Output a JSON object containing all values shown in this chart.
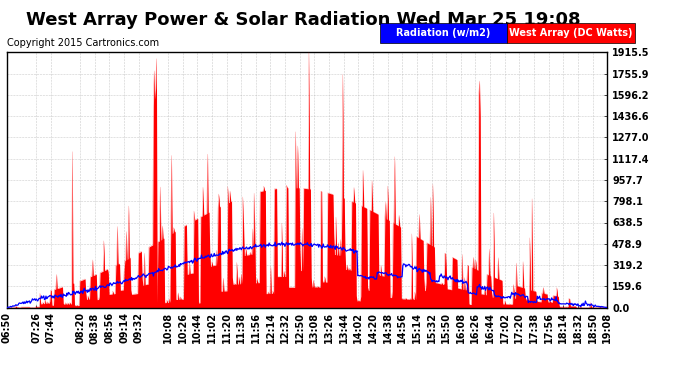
{
  "title": "West Array Power & Solar Radiation Wed Mar 25 19:08",
  "copyright": "Copyright 2015 Cartronics.com",
  "legend_radiation": "Radiation (w/m2)",
  "legend_west": "West Array (DC Watts)",
  "radiation_color": "#0000ff",
  "west_color": "#ff0000",
  "west_fill_color": "#ff0000",
  "background_color": "#ffffff",
  "grid_color": "#aaaaaa",
  "ymax": 1915.5,
  "ymin": 0.0,
  "ytick_vals": [
    0.0,
    159.6,
    319.2,
    478.9,
    638.5,
    798.1,
    957.7,
    1117.4,
    1277.0,
    1436.6,
    1596.2,
    1755.9,
    1915.5
  ],
  "ytick_labels": [
    "0.0",
    "159.6",
    "319.2",
    "478.9",
    "638.5",
    "798.1",
    "957.7",
    "1117.4",
    "1277.0",
    "1436.6",
    "1596.2",
    "1755.9",
    "1915.5"
  ],
  "xtick_labels": [
    "06:50",
    "07:26",
    "07:44",
    "08:20",
    "08:38",
    "08:56",
    "09:14",
    "09:32",
    "10:08",
    "10:26",
    "10:44",
    "11:02",
    "11:20",
    "11:38",
    "11:56",
    "12:14",
    "12:32",
    "12:50",
    "13:08",
    "13:26",
    "13:44",
    "14:02",
    "14:20",
    "14:38",
    "14:56",
    "15:14",
    "15:32",
    "15:50",
    "16:08",
    "16:26",
    "16:44",
    "17:02",
    "17:20",
    "17:38",
    "17:56",
    "18:14",
    "18:32",
    "18:50",
    "19:08"
  ],
  "title_fontsize": 13,
  "tick_fontsize": 7,
  "copyright_fontsize": 7
}
